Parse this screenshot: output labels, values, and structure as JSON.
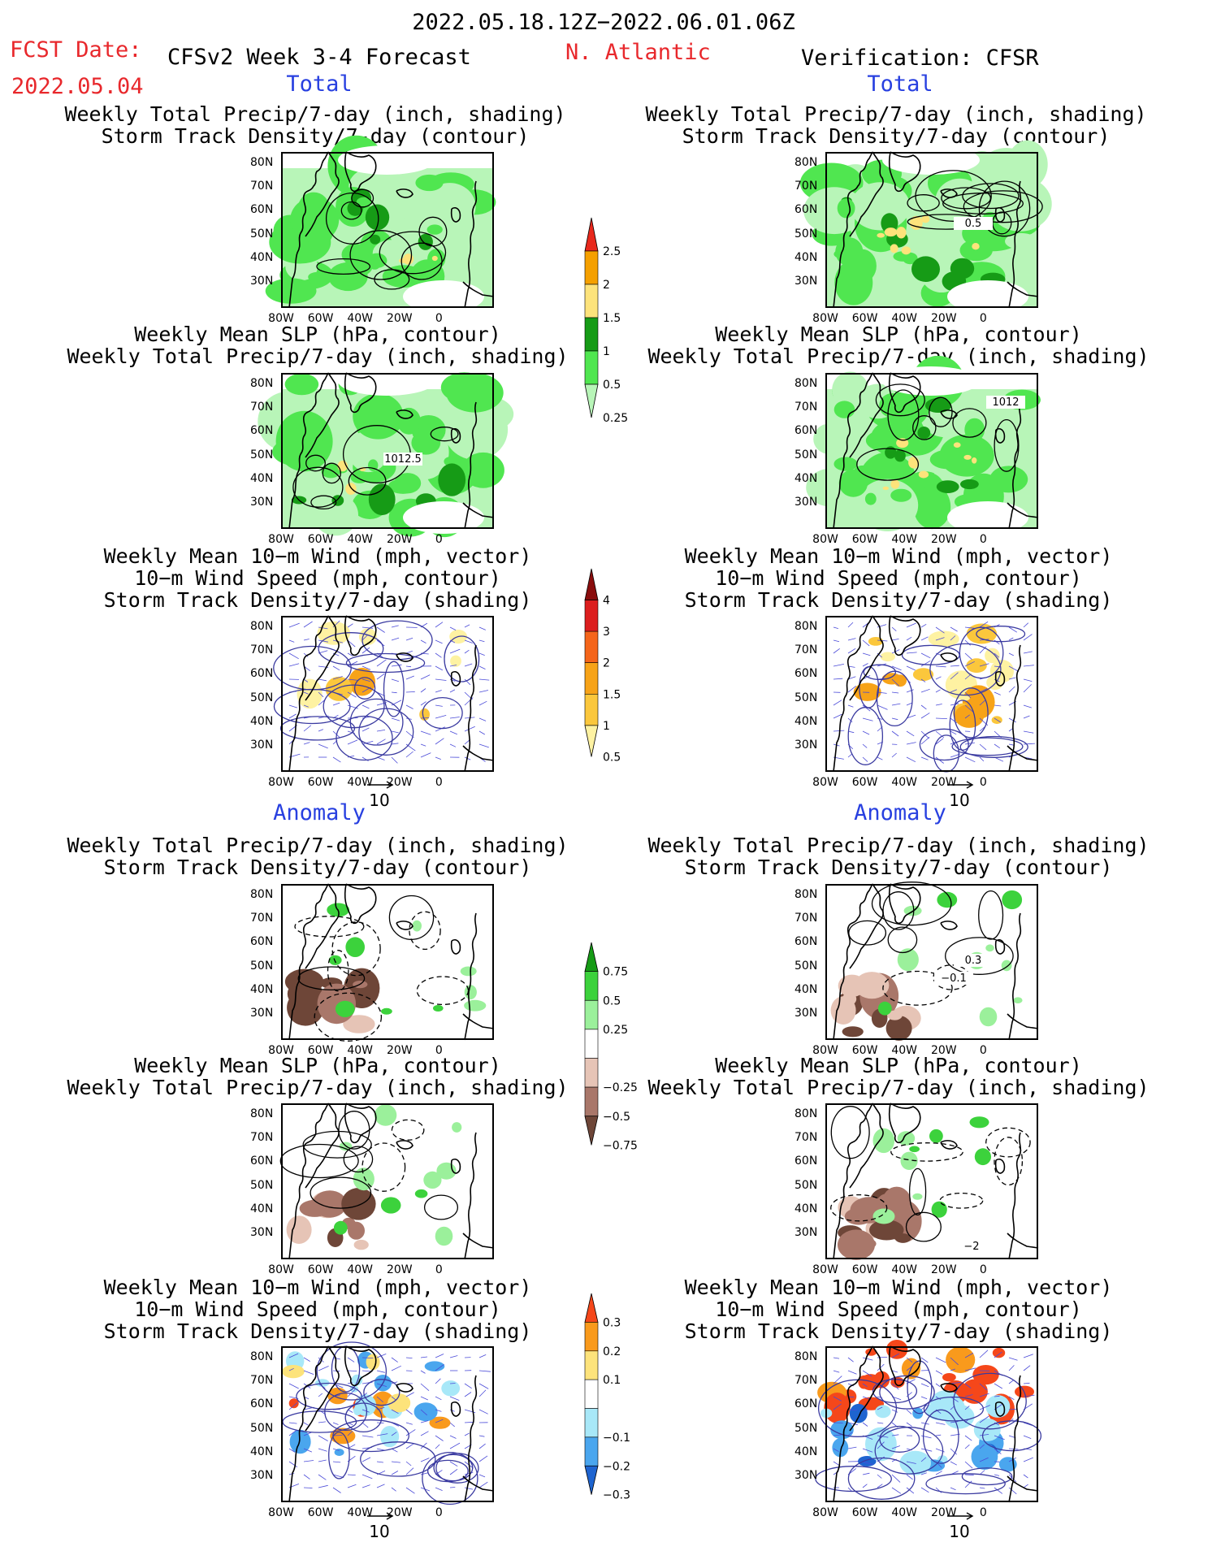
{
  "header": {
    "date_range": "2022.05.18.12Z−2022.06.01.06Z",
    "fcst_label": "FCST Date:",
    "fcst_date": "2022.05.04",
    "model_title": "CFSv2 Week 3-4 Forecast",
    "region": "N. Atlantic",
    "verification": "Verification: CFSR"
  },
  "sections": {
    "total": "Total",
    "anomaly": "Anomaly"
  },
  "panel_titles": {
    "precip_storm": [
      "Weekly Total Precip/7-day (inch, shading)",
      "Storm Track Density/7-day (contour)"
    ],
    "slp_precip": [
      "Weekly Mean SLP (hPa, contour)",
      "Weekly Total Precip/7-day (inch, shading)"
    ],
    "wind_storm": [
      "Weekly Mean 10−m Wind (mph, vector)",
      "10−m Wind Speed (mph, contour)",
      "Storm Track Density/7-day (shading)"
    ]
  },
  "axes": {
    "lat_ticks": [
      "80N",
      "70N",
      "60N",
      "50N",
      "40N",
      "30N"
    ],
    "lon_ticks": [
      "80W",
      "60W",
      "40W",
      "20W",
      "0"
    ]
  },
  "vector_reference": "10",
  "contour_labels": {
    "fc_slp": "1012.5",
    "ver_storm": "0.5",
    "ver_slp": "1012",
    "ver_anom_storm_a": "0.3",
    "ver_anom_storm_b": "−0.1",
    "ver_anom_slp": "−2"
  },
  "colorbars": {
    "precip_total": {
      "labels": [
        "2.5",
        "2",
        "1.5",
        "1",
        "0.5",
        "0.25"
      ],
      "colors": [
        "#e8281c",
        "#f5a000",
        "#fde37b",
        "#169b16",
        "#50e650",
        "#b8f5b8"
      ]
    },
    "storm_total": {
      "labels": [
        "4",
        "3",
        "2",
        "1.5",
        "1",
        "0.5"
      ],
      "colors": [
        "#8a0d0d",
        "#dc1e1e",
        "#f5651a",
        "#f7a318",
        "#fbc73c",
        "#fef2a2"
      ]
    },
    "precip_anom": {
      "labels": [
        "0.75",
        "0.5",
        "0.25",
        "−0.25",
        "−0.5",
        "−0.75"
      ],
      "colors": [
        "#169b16",
        "#3cd23c",
        "#9bf09b",
        "#ffffff",
        "#e6c4b6",
        "#a9776a",
        "#6e4638"
      ]
    },
    "storm_anom": {
      "labels": [
        "0.3",
        "0.2",
        "0.1",
        "−0.1",
        "−0.2",
        "−0.3"
      ],
      "colors": [
        "#f5471a",
        "#f99a1c",
        "#fde37b",
        "#ffffff",
        "#a8e8f8",
        "#4aa6ee",
        "#1e64d0"
      ]
    }
  }
}
